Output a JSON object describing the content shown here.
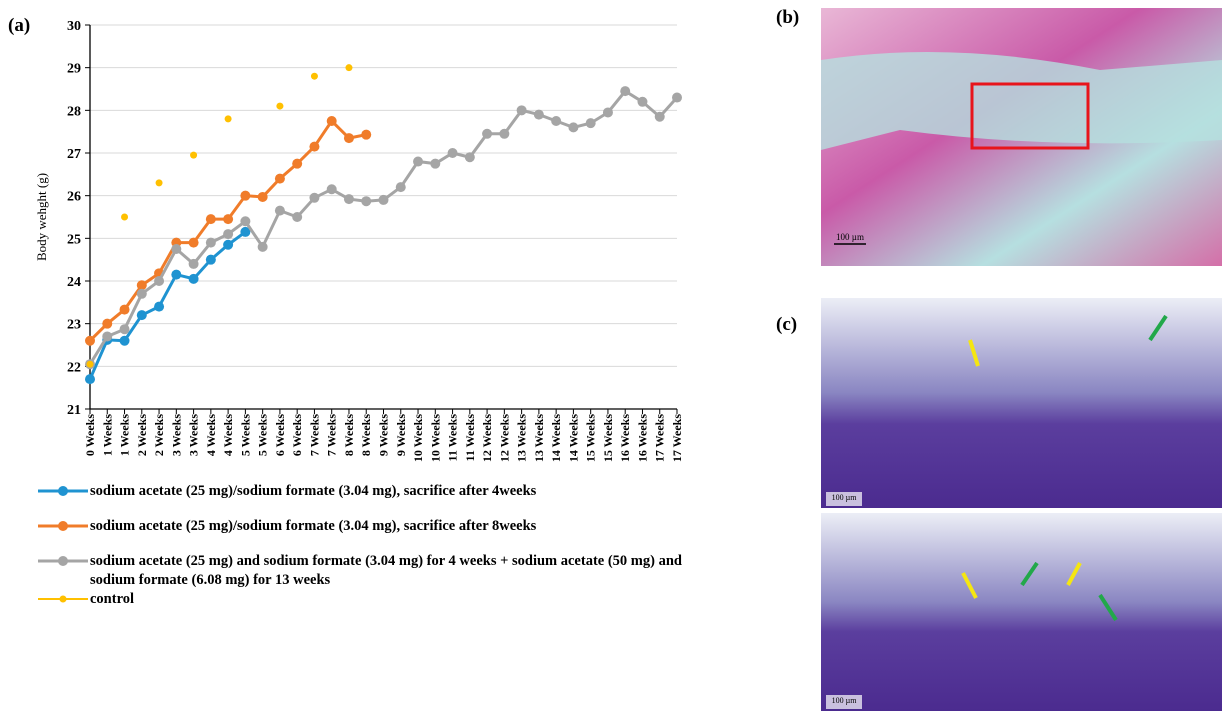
{
  "panel_labels": [
    "(a)",
    "(b)",
    "(c)"
  ],
  "scale_bars": [
    "100 µm",
    "100 µm",
    "100 µm"
  ],
  "chart_data": {
    "type": "line",
    "ylabel": "Body wehght (g)",
    "categories": [
      "0 Weeks",
      "1 Weeks",
      "1 Weeks",
      "2 Weeks",
      "2 Weeks",
      "3 Weeks",
      "3 Weeks",
      "4 Weeks",
      "4 Weeks",
      "5 Weeks",
      "5 Weeks",
      "6 Weeks",
      "6 Weeks",
      "7 Weeks",
      "7 Weeks",
      "8 Weeks",
      "8 Weeks",
      "9 Weeks",
      "9 Weeks",
      "10 Weeks",
      "10 Weeks",
      "11 Weeks",
      "11 Weeks",
      "12 Weeks",
      "12 Weeks",
      "13 Weeks",
      "13 Weeks",
      "14 Weeks",
      "14 Weeks",
      "15 Weeks",
      "15 Weeks",
      "16 Weeks",
      "16 Weeks",
      "17 Weeks",
      "17 Weeks"
    ],
    "ylim": [
      21,
      30
    ],
    "yticks": [
      21,
      22,
      23,
      24,
      25,
      26,
      27,
      28,
      29,
      30
    ],
    "grid": true,
    "legend": "bottom",
    "series": [
      {
        "name": "sodium acetate (25 mg)/sodium formate (3.04 mg), sacrifice after 4weeks",
        "color": "#1f93d1",
        "show_line": true,
        "values": [
          21.7,
          22.62,
          22.6,
          23.2,
          23.4,
          24.15,
          24.05,
          24.5,
          24.85,
          25.15,
          null,
          null,
          null,
          null,
          null,
          null,
          null,
          null,
          null,
          null,
          null,
          null,
          null,
          null,
          null,
          null,
          null,
          null,
          null,
          null,
          null,
          null,
          null,
          null,
          null
        ]
      },
      {
        "name": "sodium acetate (25 mg)/sodium formate (3.04 mg), sacrifice after 8weeks",
        "color": "#f07c2a",
        "show_line": true,
        "values": [
          22.6,
          23.0,
          23.33,
          23.9,
          24.18,
          24.9,
          24.9,
          25.45,
          25.45,
          26.0,
          25.97,
          26.4,
          26.75,
          27.15,
          27.75,
          27.35,
          27.43,
          null,
          null,
          null,
          null,
          null,
          null,
          null,
          null,
          null,
          null,
          null,
          null,
          null,
          null,
          null,
          null,
          null,
          null
        ]
      },
      {
        "name": "sodium acetate (25 mg) and sodium formate (3.04 mg) for 4 weeks + sodium acetate (50 mg) and sodium formate (6.08 mg) for 13 weeks",
        "color": "#a5a5a5",
        "show_line": true,
        "values": [
          22.05,
          22.7,
          22.87,
          23.7,
          24.0,
          24.75,
          24.4,
          24.9,
          25.1,
          25.4,
          24.8,
          25.65,
          25.5,
          25.95,
          26.15,
          25.92,
          25.87,
          25.9,
          26.2,
          26.8,
          26.75,
          27.0,
          26.9,
          27.45,
          27.45,
          28.0,
          27.9,
          27.75,
          27.6,
          27.7,
          27.95,
          28.45,
          28.2,
          27.85,
          28.3
        ]
      },
      {
        "name": "control",
        "color": "#ffc000",
        "show_line": false,
        "values": [
          22.05,
          null,
          25.5,
          null,
          26.3,
          null,
          26.95,
          null,
          27.8,
          null,
          null,
          28.1,
          null,
          28.8,
          null,
          29.0,
          null,
          null,
          null,
          null,
          null,
          null,
          null,
          null,
          null,
          null,
          null,
          null,
          null,
          null,
          null,
          null,
          null,
          null,
          null
        ]
      }
    ]
  }
}
